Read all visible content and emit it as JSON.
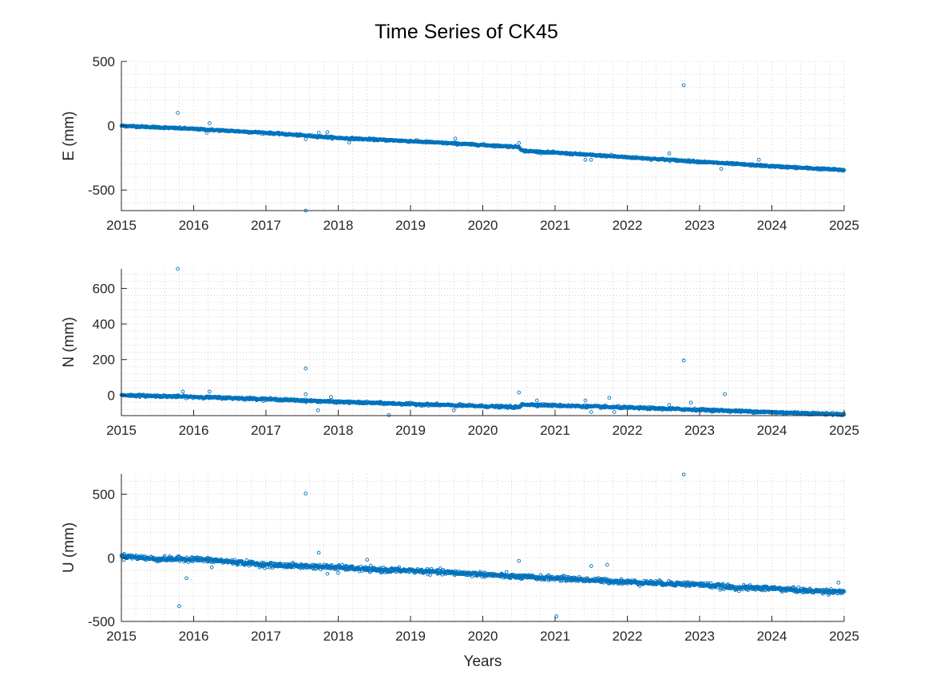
{
  "figure": {
    "title": "Time Series of CK45"
  },
  "chart_data": [
    {
      "type": "scatter",
      "id": "east",
      "title": "",
      "xlabel": "",
      "ylabel": "E (mm)",
      "xlim": [
        2015,
        2025
      ],
      "ylim": [
        -660,
        500
      ],
      "xticks": [
        2015,
        2016,
        2017,
        2018,
        2019,
        2020,
        2021,
        2022,
        2023,
        2024,
        2025
      ],
      "yticks": [
        -500,
        0,
        500
      ],
      "grid": "minor dotted",
      "marker_color": "#0072BD",
      "trend": [
        {
          "x": 2015.0,
          "y": 0
        },
        {
          "x": 2016.0,
          "y": -25
        },
        {
          "x": 2017.0,
          "y": -55
        },
        {
          "x": 2018.0,
          "y": -95
        },
        {
          "x": 2019.0,
          "y": -120
        },
        {
          "x": 2020.0,
          "y": -150
        },
        {
          "x": 2020.5,
          "y": -165
        },
        {
          "x": 2020.55,
          "y": -195
        },
        {
          "x": 2021.0,
          "y": -210
        },
        {
          "x": 2022.0,
          "y": -245
        },
        {
          "x": 2023.0,
          "y": -280
        },
        {
          "x": 2024.0,
          "y": -315
        },
        {
          "x": 2025.0,
          "y": -345
        }
      ],
      "outliers": [
        {
          "x": 2015.78,
          "y": 100
        },
        {
          "x": 2016.22,
          "y": 20
        },
        {
          "x": 2016.18,
          "y": -55
        },
        {
          "x": 2017.55,
          "y": -105
        },
        {
          "x": 2017.55,
          "y": -660
        },
        {
          "x": 2017.73,
          "y": -55
        },
        {
          "x": 2017.85,
          "y": -50
        },
        {
          "x": 2018.15,
          "y": -130
        },
        {
          "x": 2019.62,
          "y": -100
        },
        {
          "x": 2020.5,
          "y": -135
        },
        {
          "x": 2021.42,
          "y": -265
        },
        {
          "x": 2021.5,
          "y": -265
        },
        {
          "x": 2021.78,
          "y": -225
        },
        {
          "x": 2022.58,
          "y": -215
        },
        {
          "x": 2022.78,
          "y": 315
        },
        {
          "x": 2023.3,
          "y": -335
        },
        {
          "x": 2023.82,
          "y": -265
        }
      ]
    },
    {
      "type": "scatter",
      "id": "north",
      "title": "",
      "xlabel": "",
      "ylabel": "N (mm)",
      "xlim": [
        2015,
        2025
      ],
      "ylim": [
        -115,
        710
      ],
      "xticks": [
        2015,
        2016,
        2017,
        2018,
        2019,
        2020,
        2021,
        2022,
        2023,
        2024,
        2025
      ],
      "yticks": [
        0,
        200,
        400,
        600
      ],
      "grid": "minor dotted",
      "marker_color": "#0072BD",
      "trend": [
        {
          "x": 2015.0,
          "y": 0
        },
        {
          "x": 2016.0,
          "y": -10
        },
        {
          "x": 2017.0,
          "y": -22
        },
        {
          "x": 2018.0,
          "y": -38
        },
        {
          "x": 2019.0,
          "y": -50
        },
        {
          "x": 2020.0,
          "y": -62
        },
        {
          "x": 2020.5,
          "y": -68
        },
        {
          "x": 2020.55,
          "y": -52
        },
        {
          "x": 2021.0,
          "y": -58
        },
        {
          "x": 2022.0,
          "y": -70
        },
        {
          "x": 2023.0,
          "y": -82
        },
        {
          "x": 2024.0,
          "y": -96
        },
        {
          "x": 2025.0,
          "y": -108
        }
      ],
      "outliers": [
        {
          "x": 2015.78,
          "y": 710
        },
        {
          "x": 2015.85,
          "y": 20
        },
        {
          "x": 2016.22,
          "y": 20
        },
        {
          "x": 2017.55,
          "y": 150
        },
        {
          "x": 2017.55,
          "y": 5
        },
        {
          "x": 2017.72,
          "y": -85
        },
        {
          "x": 2017.9,
          "y": -10
        },
        {
          "x": 2018.7,
          "y": -112
        },
        {
          "x": 2019.6,
          "y": -85
        },
        {
          "x": 2020.5,
          "y": 15
        },
        {
          "x": 2020.75,
          "y": -30
        },
        {
          "x": 2021.42,
          "y": -30
        },
        {
          "x": 2021.5,
          "y": -95
        },
        {
          "x": 2021.75,
          "y": -15
        },
        {
          "x": 2021.82,
          "y": -95
        },
        {
          "x": 2022.58,
          "y": -55
        },
        {
          "x": 2022.78,
          "y": 195
        },
        {
          "x": 2022.88,
          "y": -42
        },
        {
          "x": 2023.35,
          "y": 5
        }
      ]
    },
    {
      "type": "scatter",
      "id": "up",
      "title": "",
      "xlabel": "Years",
      "ylabel": "U (mm)",
      "xlim": [
        2015,
        2025
      ],
      "ylim": [
        -500,
        660
      ],
      "xticks": [
        2015,
        2016,
        2017,
        2018,
        2019,
        2020,
        2021,
        2022,
        2023,
        2024,
        2025
      ],
      "yticks": [
        -500,
        0,
        500
      ],
      "grid": "minor dotted",
      "marker_color": "#0072BD",
      "trend": [
        {
          "x": 2015.0,
          "y": 15
        },
        {
          "x": 2015.5,
          "y": -10
        },
        {
          "x": 2016.0,
          "y": -10
        },
        {
          "x": 2016.5,
          "y": -30
        },
        {
          "x": 2017.0,
          "y": -55
        },
        {
          "x": 2017.5,
          "y": -65
        },
        {
          "x": 2018.0,
          "y": -75
        },
        {
          "x": 2018.5,
          "y": -95
        },
        {
          "x": 2019.0,
          "y": -100
        },
        {
          "x": 2019.5,
          "y": -115
        },
        {
          "x": 2020.0,
          "y": -130
        },
        {
          "x": 2020.5,
          "y": -150
        },
        {
          "x": 2021.0,
          "y": -160
        },
        {
          "x": 2021.5,
          "y": -175
        },
        {
          "x": 2022.0,
          "y": -190
        },
        {
          "x": 2022.5,
          "y": -200
        },
        {
          "x": 2023.0,
          "y": -210
        },
        {
          "x": 2023.5,
          "y": -235
        },
        {
          "x": 2024.0,
          "y": -240
        },
        {
          "x": 2024.5,
          "y": -260
        },
        {
          "x": 2025.0,
          "y": -265
        }
      ],
      "outliers": [
        {
          "x": 2015.8,
          "y": -380
        },
        {
          "x": 2015.9,
          "y": -160
        },
        {
          "x": 2016.25,
          "y": -75
        },
        {
          "x": 2017.55,
          "y": 505
        },
        {
          "x": 2017.73,
          "y": 40
        },
        {
          "x": 2017.85,
          "y": -125
        },
        {
          "x": 2018.0,
          "y": -120
        },
        {
          "x": 2018.4,
          "y": -15
        },
        {
          "x": 2020.5,
          "y": -25
        },
        {
          "x": 2021.02,
          "y": -460
        },
        {
          "x": 2021.5,
          "y": -65
        },
        {
          "x": 2021.72,
          "y": -55
        },
        {
          "x": 2022.78,
          "y": 655
        },
        {
          "x": 2024.92,
          "y": -195
        }
      ]
    }
  ]
}
